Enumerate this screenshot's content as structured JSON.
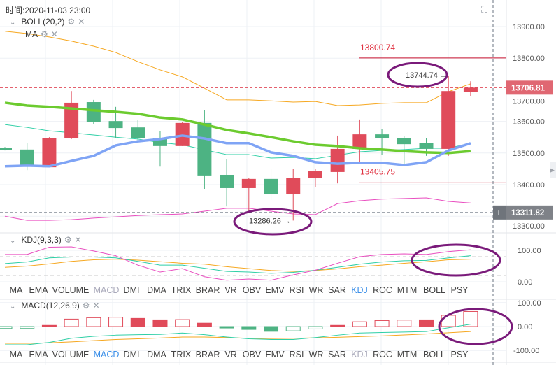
{
  "header": {
    "time_label": "时间:2020-11-03 23:00"
  },
  "indicators_main": [
    {
      "label": "BOLL(20,2)",
      "collapse_icon": "chevron-down-icon",
      "settings_icon": "gear-icon",
      "close_icon": "close-icon"
    },
    {
      "label": "MA",
      "settings_icon": "gear-icon",
      "close_icon": "close-icon"
    }
  ],
  "colors": {
    "up": "#e04b5a",
    "down": "#4db383",
    "boll_upper": "#f6a821",
    "boll_mid": "#2fcfa6",
    "boll_lower": "#e94fc0",
    "ma_green": "#6ccb2f",
    "ma_blue": "#7fa4f5",
    "annotation": "#7a1a7a",
    "active_tab": "#3b8fe8",
    "price_badge": "#e06772",
    "cross_badge": "#7f8288"
  },
  "price_axis": {
    "ticks": [
      "13900.00",
      "13800.00",
      "13700.00",
      "13600.00",
      "13500.00",
      "13400.00",
      "13300.00"
    ],
    "tick_values": [
      13900,
      13800,
      13700,
      13600,
      13500,
      13400,
      13300
    ]
  },
  "current_price": {
    "value": 13706.81,
    "label": "13706.81"
  },
  "crosshair": {
    "value": 13311.82,
    "label": "13311.82",
    "plus": "+"
  },
  "markers": {
    "high_label": "13800.74",
    "high_value": 13800.74,
    "low_label": "13405.75",
    "low_value": 13405.75,
    "max_label": "13744.74 →",
    "max_value": 13744.74,
    "min_label": "13286.26 →",
    "min_value": 13286.26
  },
  "candles": [
    {
      "o": 13517,
      "h": 13519,
      "l": 13508,
      "c": 13510
    },
    {
      "o": 13511,
      "h": 13531,
      "l": 13446,
      "c": 13460
    },
    {
      "o": 13455,
      "h": 13550,
      "l": 13455,
      "c": 13548
    },
    {
      "o": 13546,
      "h": 13696,
      "l": 13544,
      "c": 13659
    },
    {
      "o": 13661,
      "h": 13668,
      "l": 13592,
      "c": 13597
    },
    {
      "o": 13601,
      "h": 13646,
      "l": 13548,
      "c": 13579
    },
    {
      "o": 13581,
      "h": 13604,
      "l": 13539,
      "c": 13546
    },
    {
      "o": 13548,
      "h": 13570,
      "l": 13457,
      "c": 13522
    },
    {
      "o": 13522,
      "h": 13599,
      "l": 13522,
      "c": 13595
    },
    {
      "o": 13595,
      "h": 13635,
      "l": 13385,
      "c": 13429
    },
    {
      "o": 13431,
      "h": 13480,
      "l": 13331,
      "c": 13389
    },
    {
      "o": 13389,
      "h": 13420,
      "l": 13316,
      "c": 13418
    },
    {
      "o": 13418,
      "h": 13449,
      "l": 13351,
      "c": 13369
    },
    {
      "o": 13369,
      "h": 13449,
      "l": 13286.26,
      "c": 13422
    },
    {
      "o": 13420,
      "h": 13449,
      "l": 13393,
      "c": 13442
    },
    {
      "o": 13440,
      "h": 13555,
      "l": 13404,
      "c": 13513
    },
    {
      "o": 13513,
      "h": 13606,
      "l": 13473,
      "c": 13559
    },
    {
      "o": 13559,
      "h": 13575,
      "l": 13493,
      "c": 13546
    },
    {
      "o": 13548,
      "h": 13553,
      "l": 13466,
      "c": 13528
    },
    {
      "o": 13531,
      "h": 13546,
      "l": 13491,
      "c": 13513
    },
    {
      "o": 13513,
      "h": 13744.74,
      "l": 13491,
      "c": 13696
    },
    {
      "o": 13694,
      "h": 13727,
      "l": 13679,
      "c": 13706.81
    }
  ],
  "lines_main": {
    "boll_upper": [
      13885,
      13878,
      13867,
      13854,
      13838,
      13818,
      13789,
      13763,
      13741,
      13705,
      13668,
      13668,
      13665,
      13661,
      13663,
      13650,
      13652,
      13657,
      13659,
      13659,
      13694,
      13719
    ],
    "boll_mid": [
      13590,
      13581,
      13570,
      13564,
      13557,
      13550,
      13544,
      13533,
      13526,
      13510,
      13495,
      13495,
      13484,
      13486,
      13482,
      13493,
      13504,
      13508,
      13511,
      13515,
      13515,
      13531
    ],
    "boll_lower": [
      13300,
      13287,
      13287,
      13289,
      13294,
      13298,
      13302,
      13305,
      13307,
      13316,
      13325,
      13325,
      13316,
      13307,
      13305,
      13340,
      13349,
      13354,
      13356,
      13358,
      13347,
      13342
    ],
    "ma_green": [
      13659,
      13650,
      13646,
      13641,
      13635,
      13630,
      13624,
      13612,
      13606,
      13590,
      13573,
      13562,
      13550,
      13537,
      13526,
      13522,
      13515,
      13511,
      13506,
      13502,
      13500,
      13506
    ],
    "ma_blue": [
      13458,
      13460,
      13458,
      13475,
      13491,
      13524,
      13537,
      13544,
      13555,
      13546,
      13531,
      13531,
      13502,
      13491,
      13471,
      13466,
      13469,
      13469,
      13462,
      13471,
      13508,
      13531
    ]
  },
  "kdj": {
    "label": "KDJ(9,3,3)",
    "axis": [
      "100.00",
      "0.00"
    ],
    "ref_levels": [
      80,
      50,
      20
    ],
    "j": [
      87,
      87,
      110,
      111,
      98,
      83,
      53,
      31,
      42,
      16,
      5,
      9,
      5,
      22,
      37,
      59,
      80,
      87,
      89,
      87,
      96,
      102
    ],
    "k": [
      58,
      63,
      76,
      79,
      79,
      76,
      65,
      53,
      53,
      43,
      33,
      31,
      27,
      30,
      37,
      46,
      56,
      63,
      67,
      68,
      76,
      83
    ],
    "d": [
      46,
      50,
      57,
      65,
      70,
      72,
      69,
      64,
      59,
      56,
      48,
      42,
      36,
      33,
      36,
      41,
      48,
      53,
      59,
      64,
      70,
      72
    ]
  },
  "macd": {
    "label": "MACD(12,26,9)",
    "axis": [
      "100.00",
      "0.00",
      "-100.00"
    ],
    "hist": [
      -8,
      -8,
      5,
      31,
      37,
      39,
      34,
      28,
      29,
      14,
      -6,
      -12,
      -20,
      -18,
      -10,
      5,
      20,
      25,
      27,
      28,
      47,
      63
    ],
    "hist_filled": [
      false,
      false,
      true,
      false,
      false,
      false,
      true,
      true,
      false,
      true,
      true,
      true,
      true,
      false,
      false,
      true,
      false,
      false,
      false,
      true,
      false,
      false
    ],
    "dif": [
      -76,
      -76,
      -66,
      -49,
      -41,
      -36,
      -34,
      -33,
      -27,
      -34,
      -44,
      -51,
      -54,
      -54,
      -46,
      -36,
      -27,
      -25,
      -23,
      -21,
      -5,
      10
    ],
    "dea": [
      -70,
      -70,
      -68,
      -64,
      -59,
      -54,
      -51,
      -48,
      -44,
      -44,
      -46,
      -49,
      -50,
      -49,
      -47,
      -45,
      -42,
      -39,
      -35,
      -31,
      -26,
      -21
    ]
  },
  "tabs_row1": {
    "active": "KDJ",
    "dim": "MACD",
    "items": [
      "MA",
      "EMA",
      "VOLUME",
      "MACD",
      "DMI",
      "DMA",
      "TRIX",
      "BRAR",
      "VR",
      "OBV",
      "EMV",
      "RSI",
      "WR",
      "SAR",
      "KDJ",
      "ROC",
      "MTM",
      "BOLL",
      "PSY"
    ]
  },
  "tabs_row2": {
    "active": "MACD",
    "dim": "KDJ",
    "items": [
      "MA",
      "EMA",
      "VOLUME",
      "MACD",
      "DMI",
      "DMA",
      "TRIX",
      "BRAR",
      "VR",
      "OBV",
      "EMV",
      "RSI",
      "WR",
      "SAR",
      "KDJ",
      "ROC",
      "MTM",
      "BOLL",
      "PSY"
    ]
  }
}
